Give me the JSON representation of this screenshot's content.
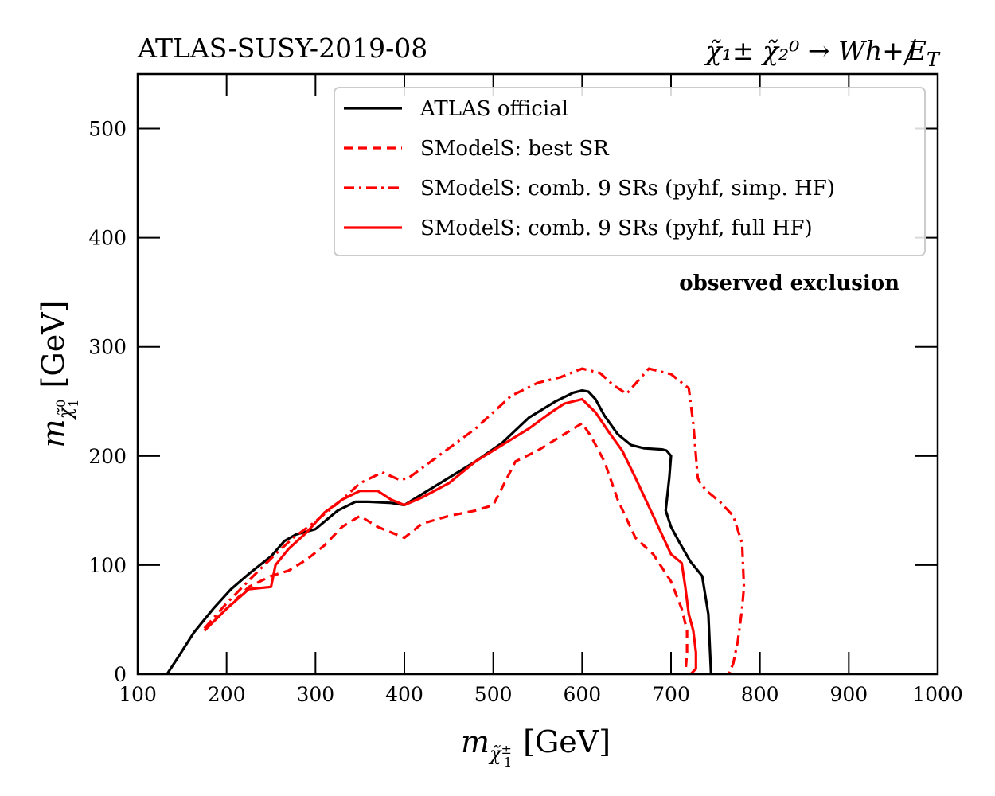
{
  "chart_data": {
    "type": "line",
    "title_left": "ATLAS-SUSY-2019-08",
    "title_right": {
      "process": "χ̃₁± χ̃₂⁰ → Wh+",
      "met": "E",
      "met_sub": "T"
    },
    "xlabel": {
      "symbol": "m",
      "sub_base": "χ̃",
      "sub_sub": "1",
      "sub_sup": "±",
      "unit": "[GeV]"
    },
    "ylabel": {
      "symbol": "m",
      "sub_base": "χ̃",
      "sub_sub": "1",
      "sub_sup": "0",
      "unit": "[GeV]"
    },
    "xlim": [
      100,
      1000
    ],
    "ylim": [
      0,
      550
    ],
    "xticks": [
      100,
      200,
      300,
      400,
      500,
      600,
      700,
      800,
      900,
      1000
    ],
    "xtick_labels": [
      "100",
      "200",
      "300",
      "400",
      "500",
      "600",
      "700",
      "800",
      "900",
      "1000"
    ],
    "yticks": [
      0,
      100,
      200,
      300,
      400,
      500
    ],
    "ytick_labels": [
      "0",
      "100",
      "200",
      "300",
      "400",
      "500"
    ],
    "legend_position": "top-right",
    "annotation": "observed exclusion",
    "series": [
      {
        "name": "ATLAS official",
        "color": "#000000",
        "style": "solid",
        "x": [
          133,
          145,
          163,
          185,
          205,
          225,
          250,
          265,
          278,
          300,
          325,
          345,
          360,
          385,
          400,
          420,
          450,
          480,
          510,
          540,
          570,
          590,
          600,
          607,
          615,
          625,
          640,
          655,
          670,
          690,
          695,
          700,
          698,
          694,
          700,
          710,
          722,
          735,
          742,
          745
        ],
        "y": [
          0,
          15,
          38,
          60,
          78,
          92,
          108,
          122,
          128,
          133,
          150,
          158,
          158,
          157,
          155,
          165,
          180,
          195,
          212,
          235,
          250,
          258,
          260,
          259,
          252,
          237,
          220,
          210,
          207,
          206,
          205,
          200,
          180,
          150,
          135,
          120,
          103,
          90,
          55,
          0
        ]
      },
      {
        "name": "SModelS: best SR",
        "color": "#ff0000",
        "style": "dashed",
        "x": [
          175,
          200,
          225,
          250,
          270,
          290,
          310,
          330,
          350,
          370,
          400,
          420,
          450,
          480,
          500,
          525,
          550,
          570,
          590,
          600,
          610,
          625,
          640,
          660,
          680,
          700,
          712,
          718,
          718,
          716
        ],
        "y": [
          40,
          60,
          80,
          90,
          95,
          105,
          118,
          135,
          145,
          135,
          125,
          138,
          145,
          150,
          155,
          195,
          205,
          215,
          225,
          230,
          218,
          195,
          160,
          125,
          110,
          85,
          60,
          40,
          20,
          0
        ]
      },
      {
        "name": "SModelS: comb. 9 SRs (pyhf, simp. HF)",
        "color": "#ff0000",
        "style": "dashdot",
        "x": [
          175,
          200,
          230,
          255,
          275,
          300,
          330,
          350,
          375,
          395,
          405,
          430,
          460,
          480,
          500,
          520,
          550,
          575,
          600,
          620,
          635,
          650,
          675,
          700,
          720,
          725,
          728,
          730,
          733,
          740,
          755,
          770,
          780,
          782,
          780,
          775,
          770,
          765
        ],
        "y": [
          42,
          65,
          90,
          110,
          125,
          140,
          160,
          175,
          185,
          178,
          180,
          195,
          213,
          225,
          240,
          255,
          267,
          272,
          280,
          276,
          265,
          257,
          280,
          275,
          262,
          230,
          200,
          180,
          175,
          168,
          158,
          145,
          120,
          80,
          60,
          30,
          10,
          0
        ]
      },
      {
        "name": "SModelS: comb. 9 SRs (pyhf, full HF)",
        "color": "#ff0000",
        "style": "solid",
        "x": [
          175,
          200,
          225,
          250,
          255,
          270,
          290,
          310,
          330,
          350,
          370,
          385,
          400,
          420,
          450,
          480,
          510,
          540,
          565,
          580,
          600,
          615,
          630,
          645,
          660,
          680,
          700,
          712,
          716,
          720,
          725,
          728,
          728,
          722
        ],
        "y": [
          40,
          60,
          78,
          80,
          100,
          115,
          130,
          148,
          160,
          168,
          168,
          160,
          155,
          162,
          175,
          195,
          210,
          225,
          240,
          248,
          252,
          240,
          222,
          205,
          180,
          145,
          110,
          102,
          80,
          55,
          40,
          20,
          5,
          0
        ]
      }
    ]
  }
}
